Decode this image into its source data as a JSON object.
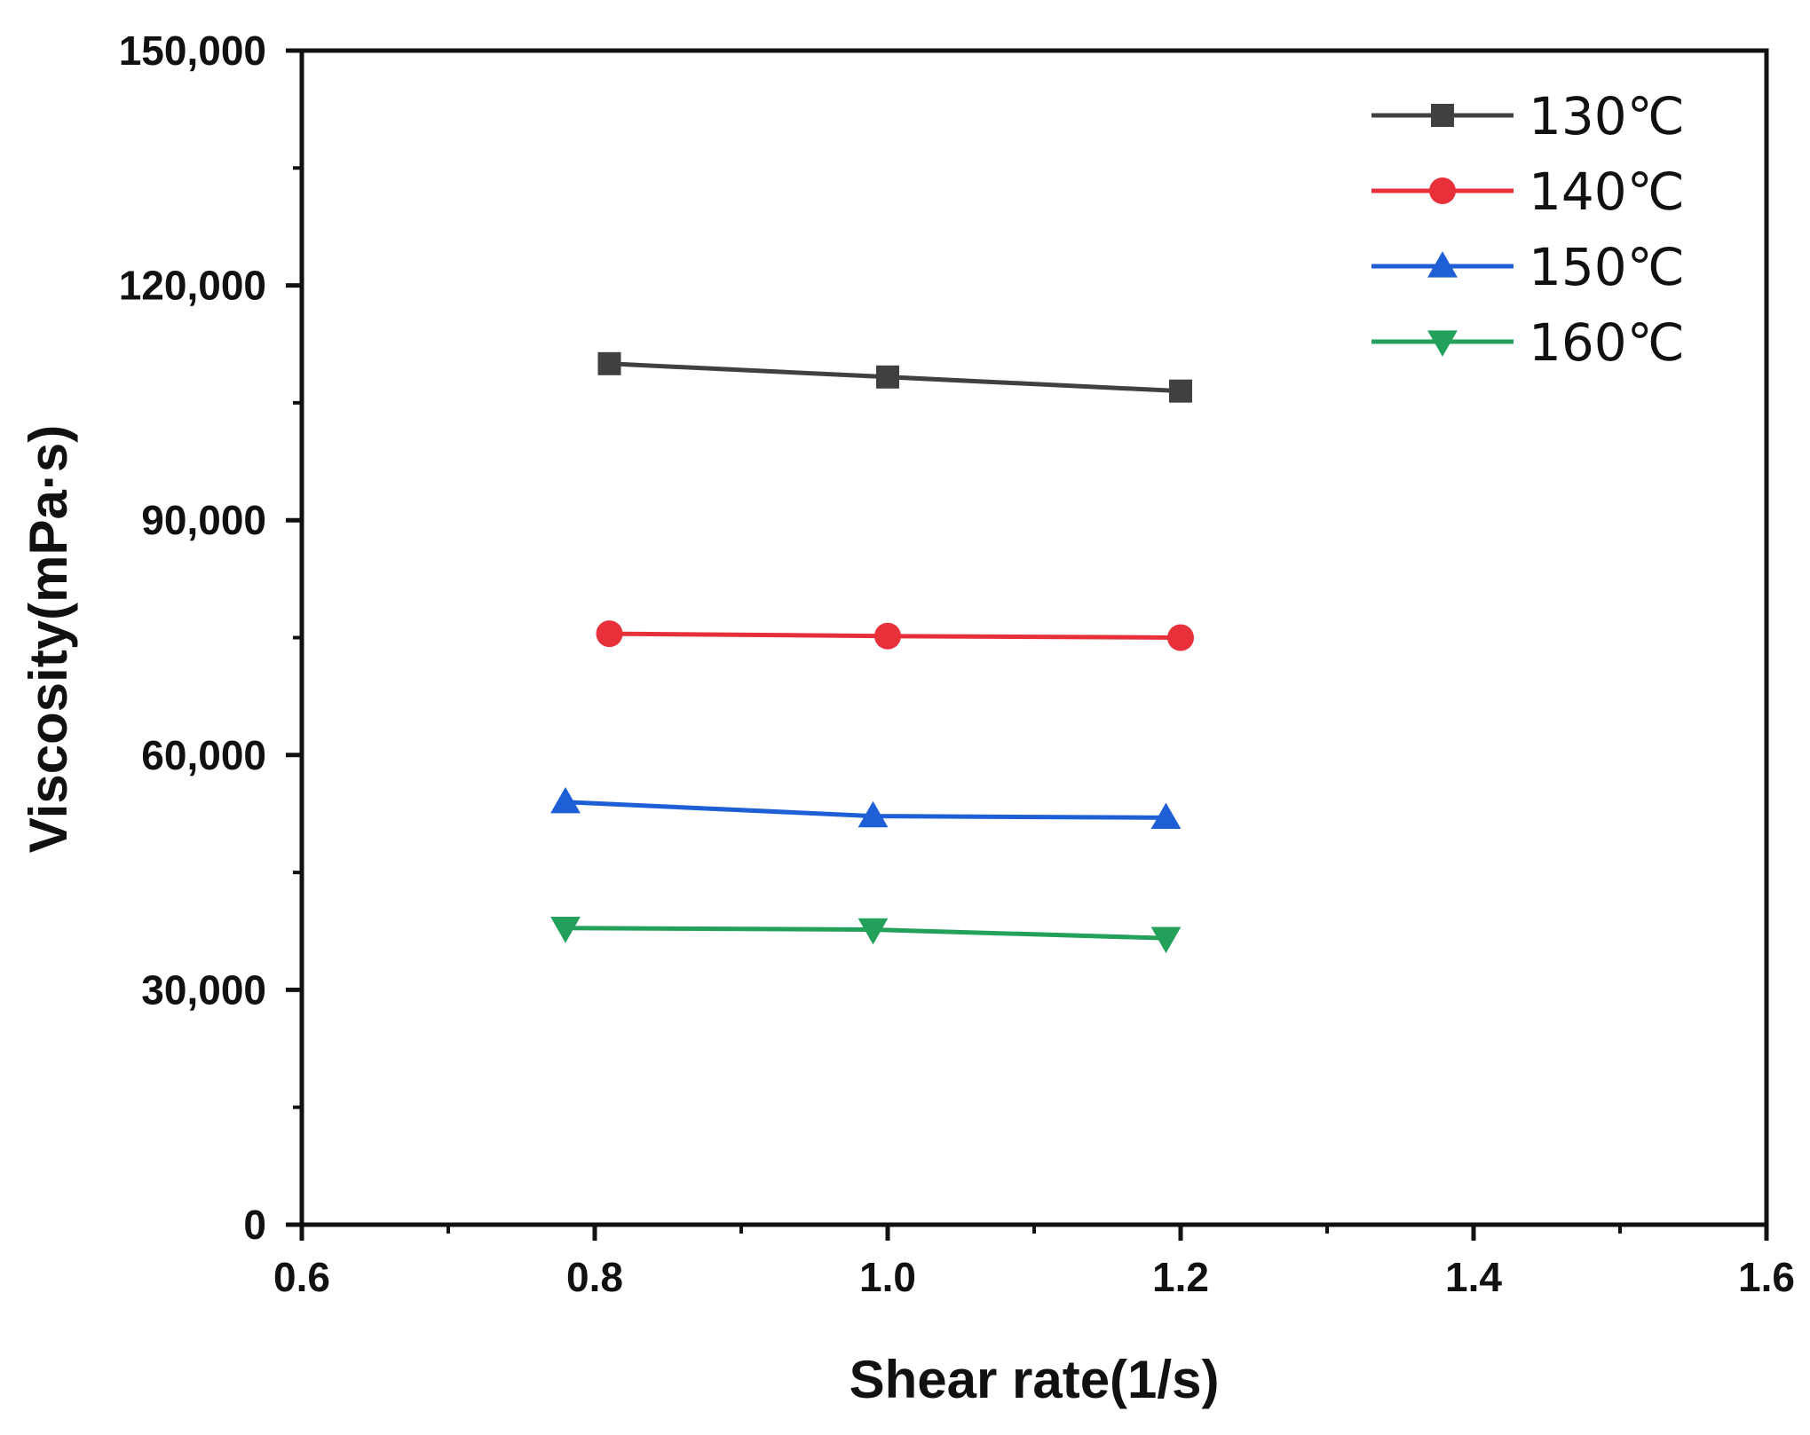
{
  "chart_data": {
    "type": "line",
    "xlabel": "Shear rate(1/s)",
    "ylabel": "Viscosity(mPa·s)",
    "xlim": [
      0.6,
      1.6
    ],
    "ylim": [
      0,
      150000
    ],
    "x_ticks": [
      "0.6",
      "0.8",
      "1.0",
      "1.2",
      "1.4",
      "1.6"
    ],
    "y_ticks": [
      "0",
      "30,000",
      "60,000",
      "90,000",
      "120,000",
      "150,000"
    ],
    "grid": false,
    "legend_position": "top-right",
    "series": [
      {
        "name": "130℃",
        "color": "#404040",
        "marker": "square",
        "x": [
          0.81,
          1.0,
          1.2
        ],
        "y": [
          110000,
          108300,
          106500
        ]
      },
      {
        "name": "140℃",
        "color": "#e8303a",
        "marker": "circle",
        "x": [
          0.81,
          1.0,
          1.2
        ],
        "y": [
          75500,
          75200,
          75000
        ]
      },
      {
        "name": "150℃",
        "color": "#1f5fd6",
        "marker": "triangle-up",
        "x": [
          0.78,
          0.99,
          1.19
        ],
        "y": [
          54000,
          52200,
          52000
        ]
      },
      {
        "name": "160℃",
        "color": "#23a05a",
        "marker": "triangle-down",
        "x": [
          0.78,
          0.99,
          1.19
        ],
        "y": [
          37900,
          37700,
          36600
        ]
      }
    ]
  }
}
